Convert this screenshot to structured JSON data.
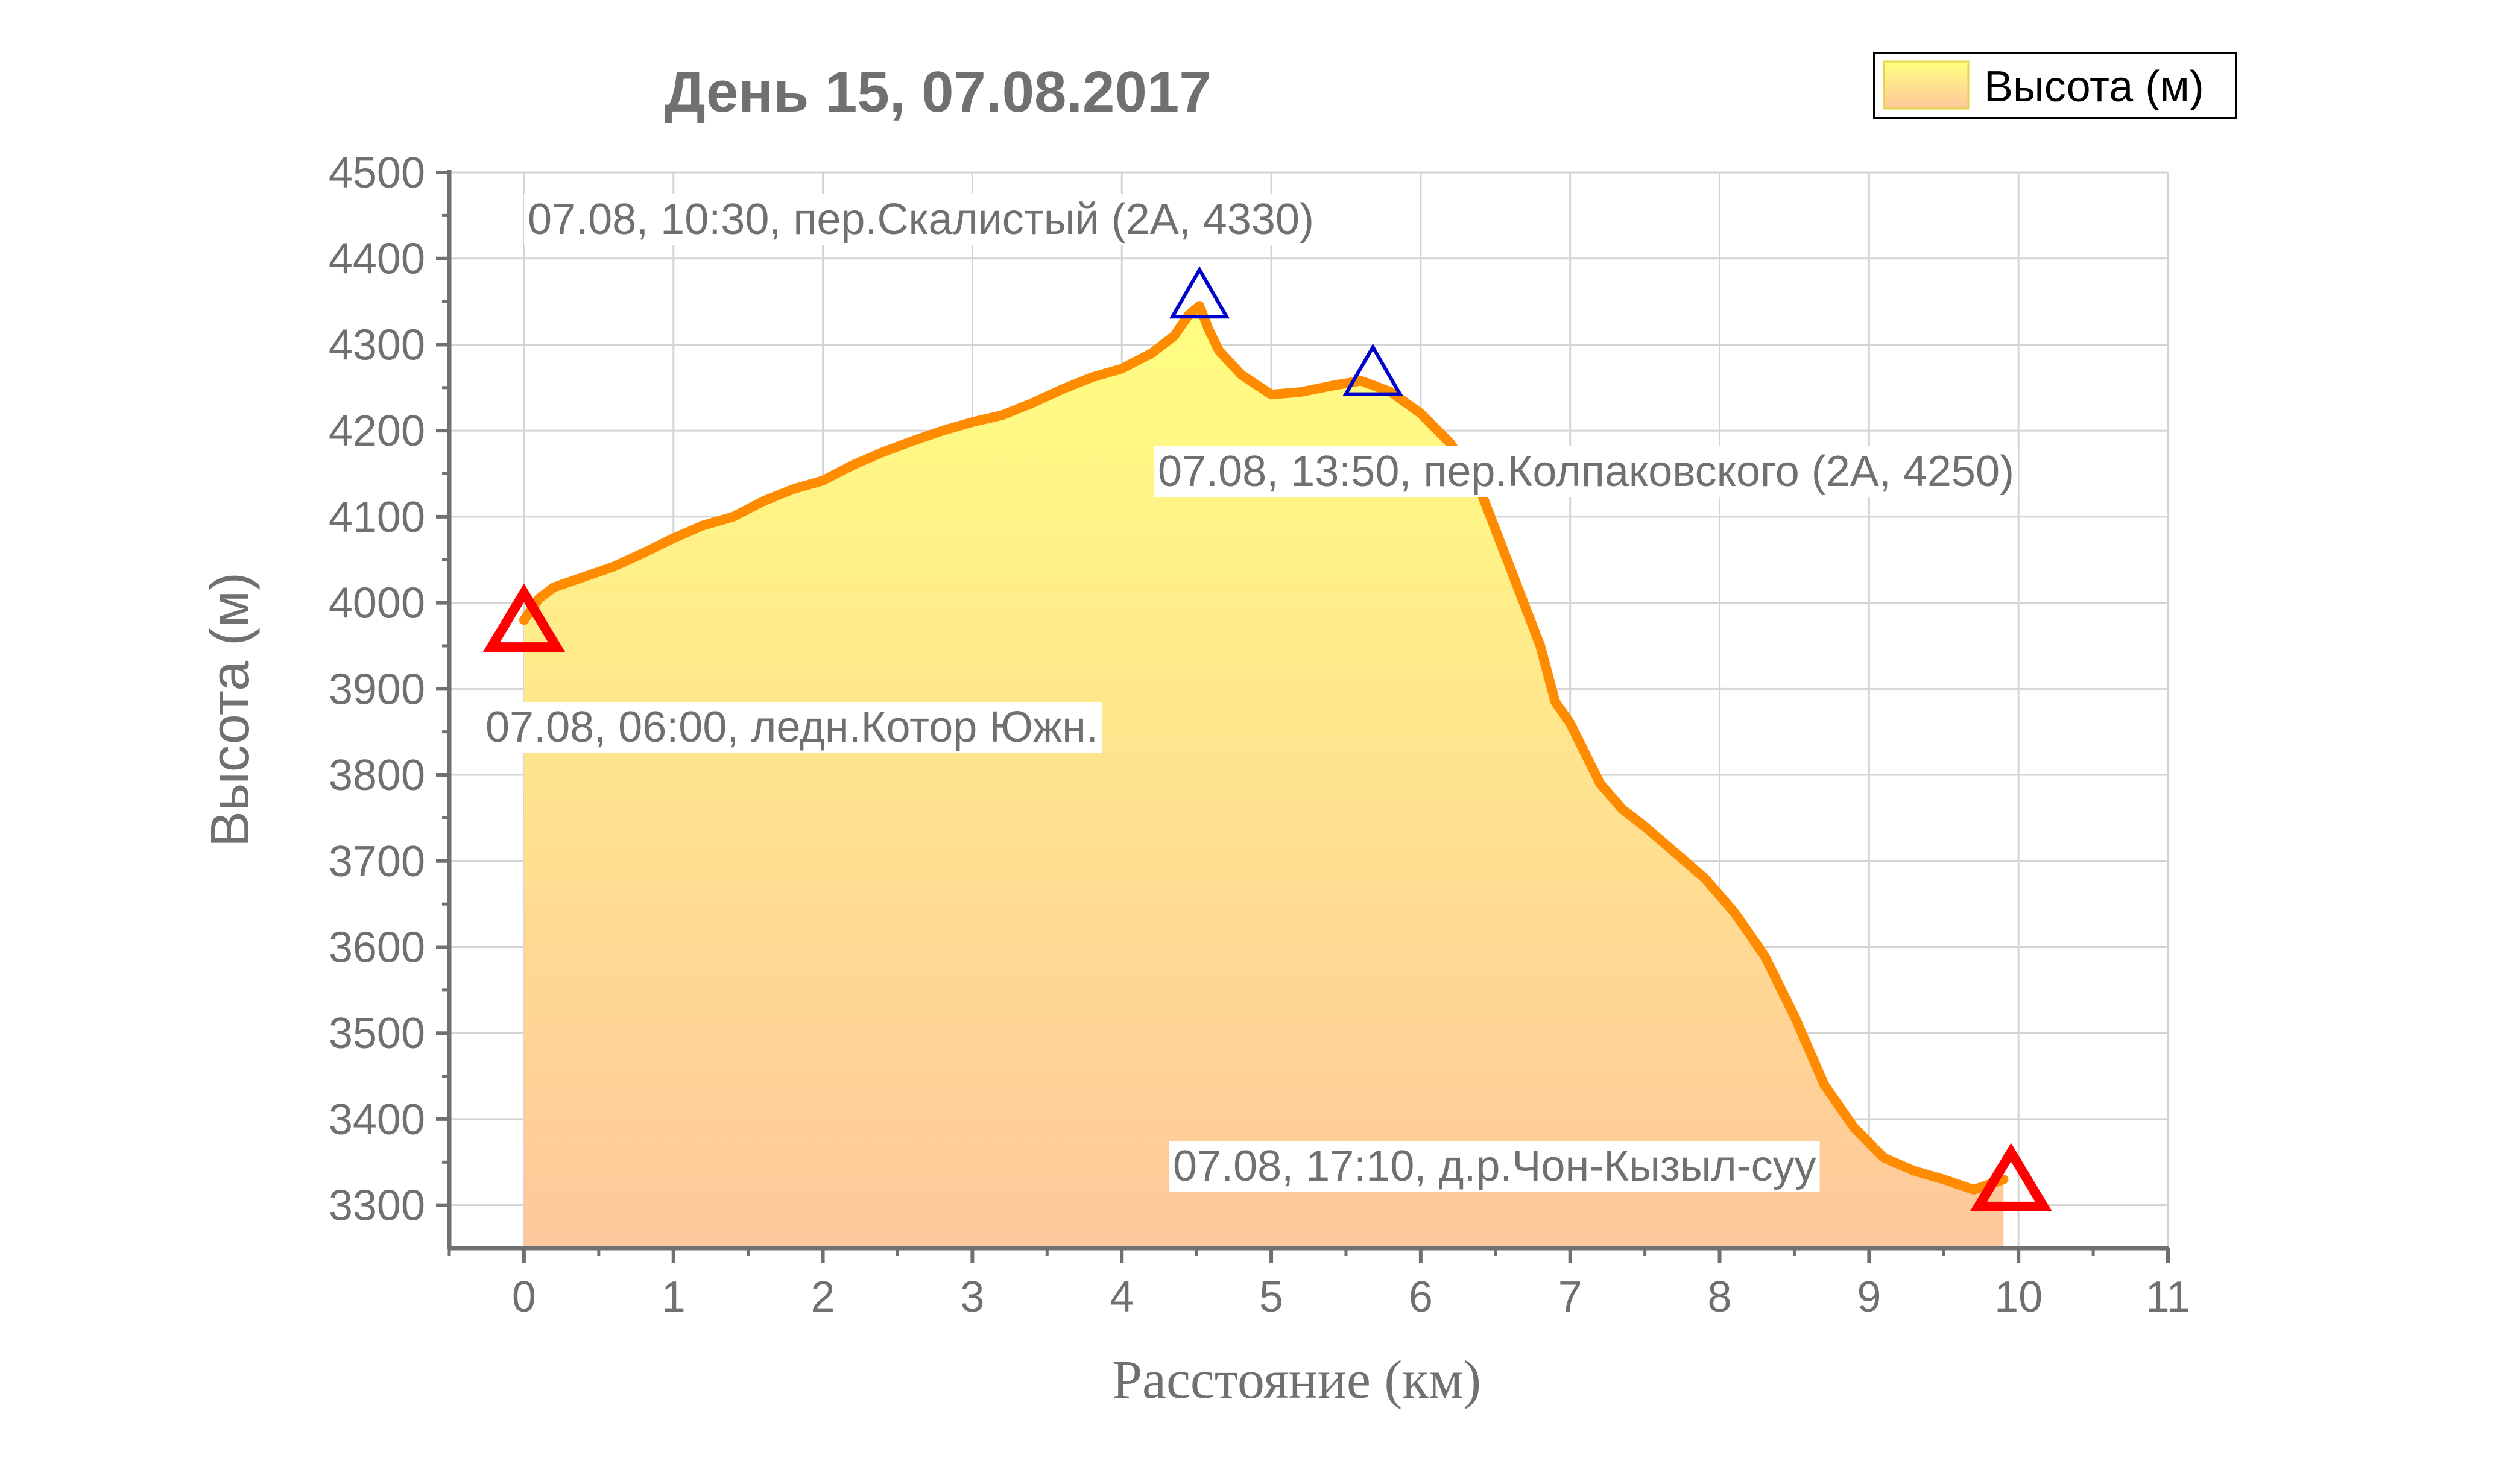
{
  "chart_data": {
    "type": "area",
    "title": "День 15, 07.08.2017",
    "xlabel": "Расстояние (км)",
    "ylabel": "Высота (м)",
    "xlim": [
      -0.5,
      11
    ],
    "ylim": [
      3250,
      4500
    ],
    "x_ticks": [
      0,
      1,
      2,
      3,
      4,
      5,
      6,
      7,
      8,
      9,
      10,
      11
    ],
    "y_ticks": [
      3300,
      3400,
      3500,
      3600,
      3700,
      3800,
      3900,
      4000,
      4100,
      4200,
      4300,
      4400,
      4500
    ],
    "grid": true,
    "legend": {
      "position": "top-right",
      "entries": [
        "Высота (м)"
      ]
    },
    "colors": {
      "line": "#ff8c00",
      "fill_top": "#ffff80",
      "fill_bottom": "#ffc79c",
      "summit_marker": "#0000cc",
      "endpoint_marker": "#ff0000",
      "text": "#707070"
    },
    "series": [
      {
        "name": "Высота (м)",
        "x": [
          0,
          0.1,
          0.2,
          0.4,
          0.6,
          0.8,
          1.0,
          1.2,
          1.4,
          1.6,
          1.8,
          2.0,
          2.2,
          2.4,
          2.6,
          2.8,
          3.0,
          3.2,
          3.4,
          3.6,
          3.8,
          4.0,
          4.2,
          4.35,
          4.45,
          4.52,
          4.58,
          4.65,
          4.8,
          5.0,
          5.2,
          5.4,
          5.6,
          5.8,
          6.0,
          6.2,
          6.4,
          6.6,
          6.8,
          6.9,
          7.0,
          7.2,
          7.35,
          7.5,
          7.7,
          7.9,
          8.1,
          8.3,
          8.5,
          8.7,
          8.9,
          9.1,
          9.3,
          9.5,
          9.7,
          9.9
        ],
        "y": [
          3980,
          4005,
          4018,
          4030,
          4042,
          4058,
          4075,
          4090,
          4100,
          4118,
          4132,
          4142,
          4160,
          4175,
          4188,
          4200,
          4210,
          4218,
          4232,
          4248,
          4262,
          4272,
          4290,
          4310,
          4335,
          4345,
          4318,
          4293,
          4265,
          4242,
          4245,
          4252,
          4258,
          4245,
          4220,
          4185,
          4130,
          4040,
          3950,
          3885,
          3860,
          3790,
          3760,
          3740,
          3710,
          3680,
          3640,
          3590,
          3520,
          3440,
          3390,
          3355,
          3340,
          3330,
          3318,
          3330
        ]
      }
    ],
    "annotations": [
      {
        "label": "07.08, 06:00, ледн.Котор Южн.",
        "x": 0,
        "y": 3980,
        "marker": "endpoint"
      },
      {
        "label": "07.08, 10:30, пер.Скалистый (2А, 4330)",
        "x": 4.52,
        "y": 4345,
        "marker": "summit"
      },
      {
        "label": "07.08, 13:50, пер.Колпаковского (2А, 4250)",
        "x": 5.68,
        "y": 4255,
        "marker": "summit"
      },
      {
        "label": "07.08, 17:10, д.р.Чон-Кызыл-суу",
        "x": 9.95,
        "y": 3330,
        "marker": "endpoint"
      }
    ]
  }
}
